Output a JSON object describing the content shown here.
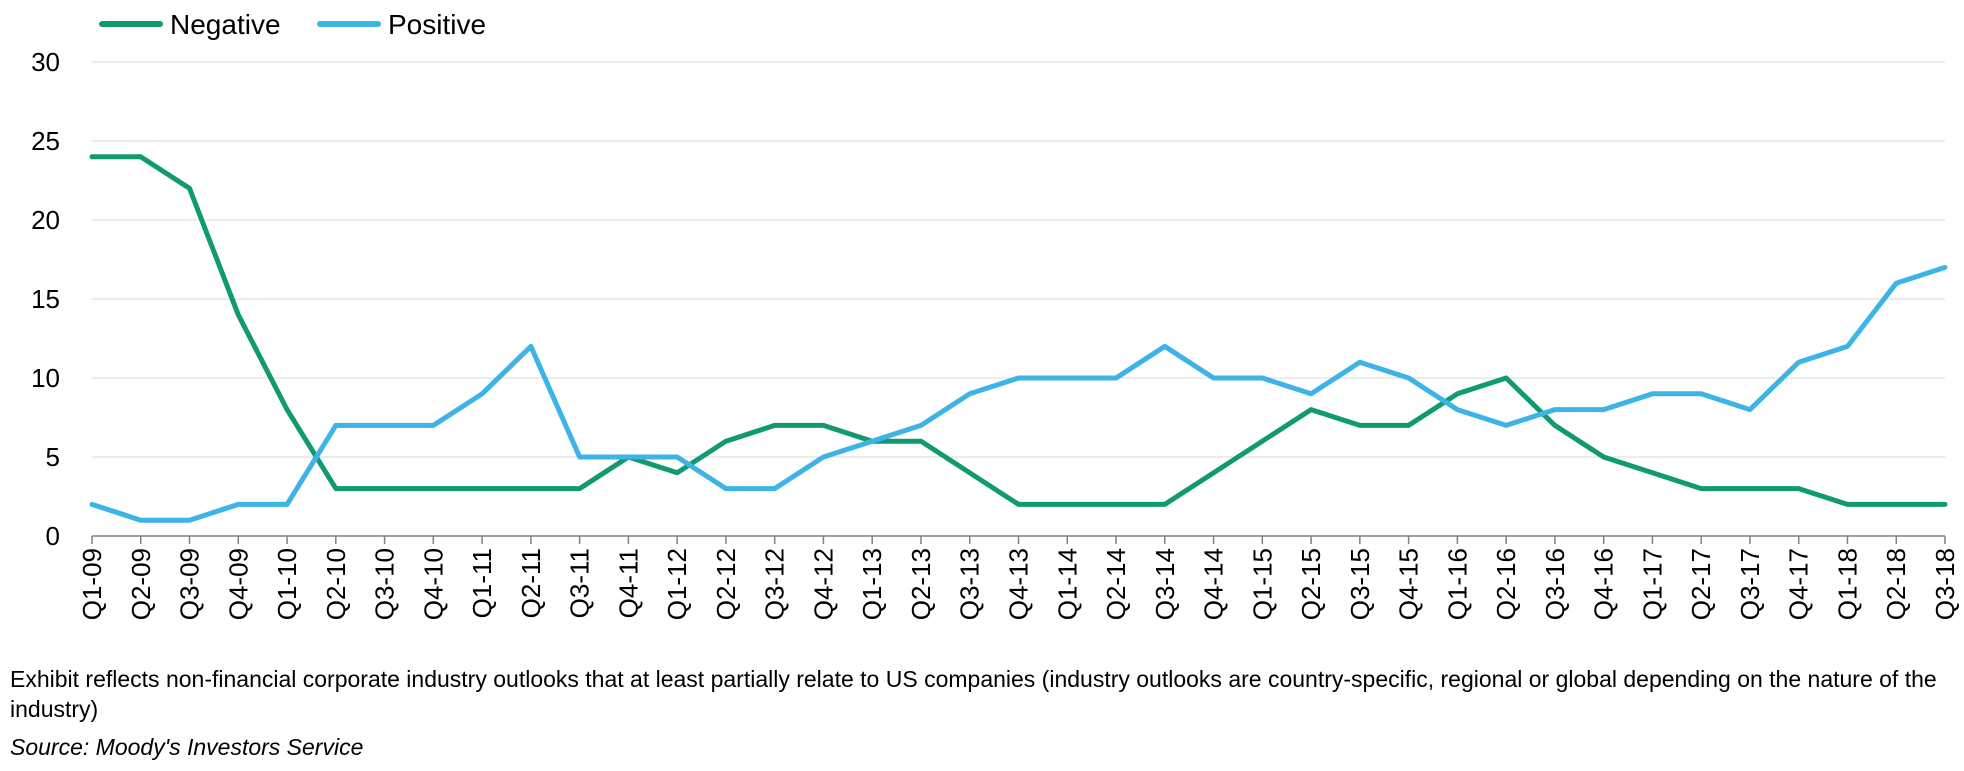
{
  "chart_data": {
    "type": "line",
    "categories": [
      "Q1-09",
      "Q2-09",
      "Q3-09",
      "Q4-09",
      "Q1-10",
      "Q2-10",
      "Q3-10",
      "Q4-10",
      "Q1-11",
      "Q2-11",
      "Q3-11",
      "Q4-11",
      "Q1-12",
      "Q2-12",
      "Q3-12",
      "Q4-12",
      "Q1-13",
      "Q2-13",
      "Q3-13",
      "Q4-13",
      "Q1-14",
      "Q2-14",
      "Q3-14",
      "Q4-14",
      "Q1-15",
      "Q2-15",
      "Q3-15",
      "Q4-15",
      "Q1-16",
      "Q2-16",
      "Q3-16",
      "Q4-16",
      "Q1-17",
      "Q2-17",
      "Q3-17",
      "Q4-17",
      "Q1-18",
      "Q2-18",
      "Q3-18"
    ],
    "series": [
      {
        "name": "Negative",
        "color": "#119a6f",
        "values": [
          24,
          24,
          22,
          14,
          8,
          3,
          3,
          3,
          3,
          3,
          3,
          5,
          4,
          6,
          7,
          7,
          6,
          6,
          4,
          2,
          2,
          2,
          2,
          4,
          6,
          8,
          7,
          7,
          9,
          10,
          7,
          5,
          4,
          3,
          3,
          3,
          2,
          2,
          2
        ]
      },
      {
        "name": "Positive",
        "color": "#3db3e6",
        "values": [
          2,
          1,
          1,
          2,
          2,
          7,
          7,
          7,
          9,
          12,
          5,
          5,
          5,
          3,
          3,
          5,
          6,
          7,
          9,
          10,
          10,
          10,
          12,
          10,
          10,
          9,
          11,
          10,
          8,
          7,
          8,
          8,
          9,
          9,
          8,
          11,
          12,
          16,
          17
        ]
      }
    ],
    "ylim": [
      0,
      30
    ],
    "yticks": [
      0,
      5,
      10,
      15,
      20,
      25,
      30
    ],
    "grid": true,
    "legend": "top-left",
    "gridline_color": "#d9d9d9"
  },
  "footnote": "Exhibit reflects non-financial corporate industry outlooks that at least partially relate to US companies (industry outlooks are country-specific, regional or global depending on the nature of the industry)",
  "source": "Source: Moody's Investors Service"
}
